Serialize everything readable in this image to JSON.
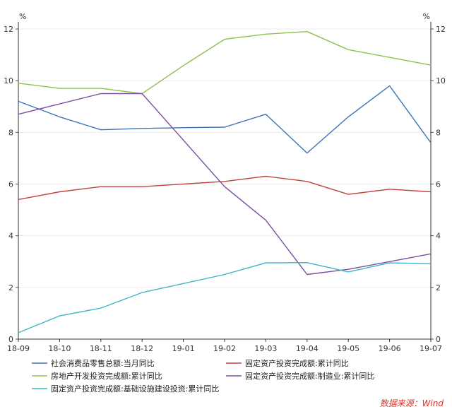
{
  "chart_data": {
    "type": "line",
    "y_unit_left": "%",
    "y_unit_right": "%",
    "ylim": [
      0,
      12
    ],
    "yticks": [
      0,
      2,
      4,
      6,
      8,
      10,
      12
    ],
    "ytick_labels": [
      "0",
      "2",
      "4",
      "6",
      "8",
      "10",
      "12"
    ],
    "categories": [
      "18-09",
      "18-10",
      "18-11",
      "18-12",
      "19-01",
      "19-02",
      "19-03",
      "19-04",
      "19-05",
      "19-06",
      "19-07"
    ],
    "grid": true,
    "legend_position": "bottom",
    "series": [
      {
        "name": "社会消费品零售总额:当月同比",
        "color": "#3a73b4",
        "values": [
          9.2,
          8.6,
          8.1,
          8.15,
          8.18,
          8.2,
          8.7,
          7.2,
          8.6,
          9.8,
          7.6
        ]
      },
      {
        "name": "固定资产投资完成额:累计同比",
        "color": "#c0443e",
        "values": [
          5.4,
          5.7,
          5.9,
          5.9,
          6.0,
          6.1,
          6.3,
          6.1,
          5.6,
          5.8,
          5.7
        ]
      },
      {
        "name": "房地产开发投资完成额:累计同比",
        "color": "#8fc24a",
        "values": [
          9.9,
          9.7,
          9.7,
          9.5,
          10.58,
          11.6,
          11.8,
          11.9,
          11.2,
          10.9,
          10.6
        ]
      },
      {
        "name": "固定资产投资完成额:制造业:累计同比",
        "color": "#7a4ea0",
        "values": [
          8.7,
          9.1,
          9.5,
          9.5,
          7.7,
          5.9,
          4.6,
          2.5,
          2.7,
          3.0,
          3.3
        ]
      },
      {
        "name": "固定资产投资完成额:基础设施建设投资:累计同比",
        "color": "#3fb3c8",
        "values": [
          0.25,
          0.9,
          1.2,
          1.8,
          2.15,
          2.5,
          2.95,
          2.96,
          2.6,
          2.95,
          2.92
        ]
      }
    ]
  },
  "source_label": "数据来源：Wind"
}
